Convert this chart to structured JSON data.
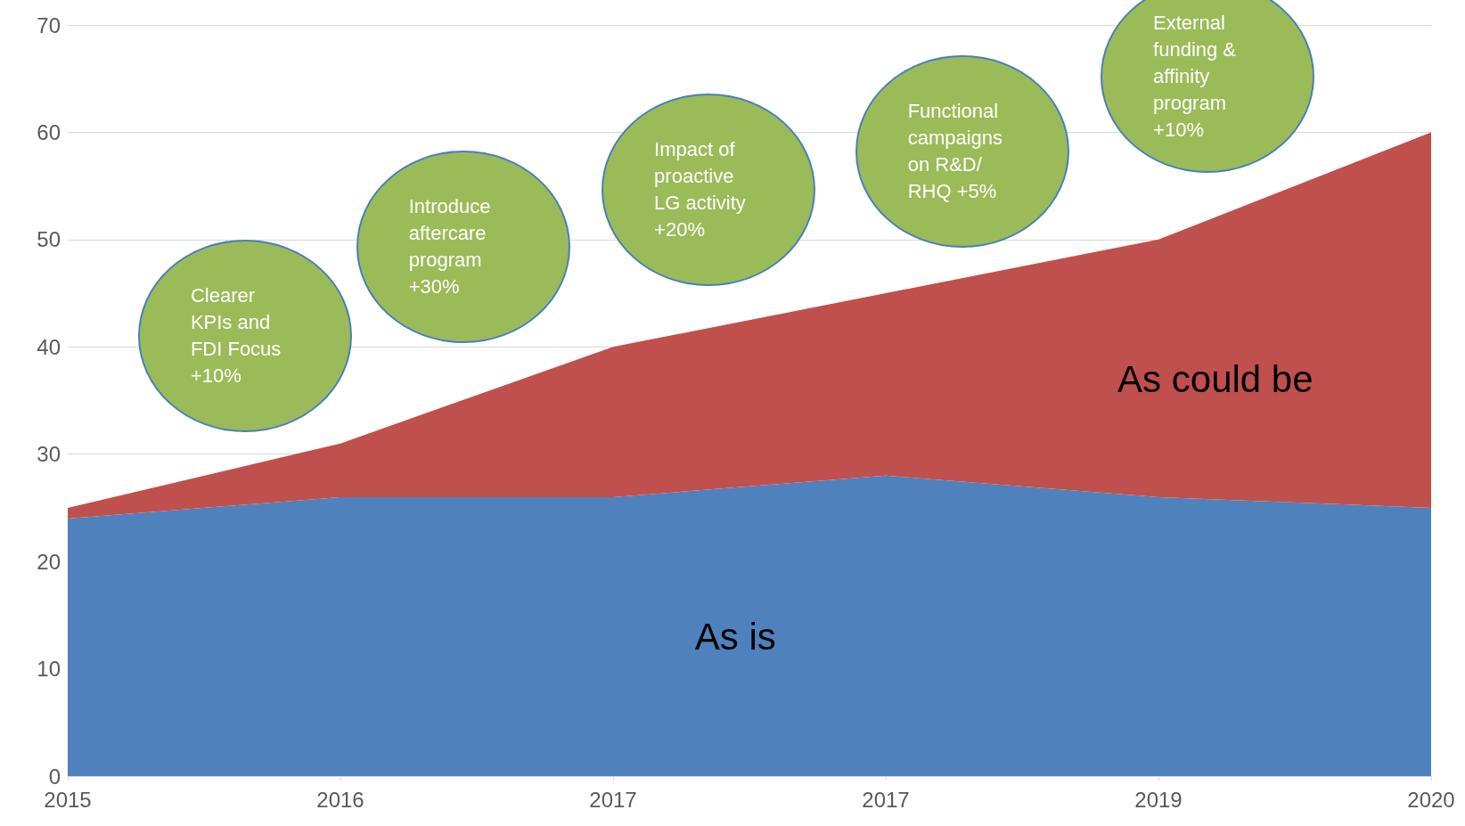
{
  "chart_data": {
    "type": "area",
    "stacked": true,
    "categories": [
      "2015",
      "2016",
      "2017",
      "2017",
      "2019",
      "2020"
    ],
    "series": [
      {
        "name": "As is",
        "color": "#4f81bd",
        "values": [
          24,
          26,
          26,
          28,
          26,
          25
        ]
      },
      {
        "name": "As could be",
        "color": "#c0504d",
        "values": [
          1,
          5,
          14,
          17,
          24,
          35
        ]
      }
    ],
    "ylim": [
      0,
      70
    ],
    "yticks": [
      0,
      10,
      20,
      30,
      40,
      50,
      60,
      70
    ],
    "grid": "y",
    "legend": false,
    "annotations": [
      "Clearer KPIs and FDI Focus +10%",
      "Introduce aftercare program +30%",
      "Impact of proactive LG activity +20%",
      "Functional campaigns on R&D/ RHQ +5%",
      "External funding & affinity program +10%"
    ]
  }
}
